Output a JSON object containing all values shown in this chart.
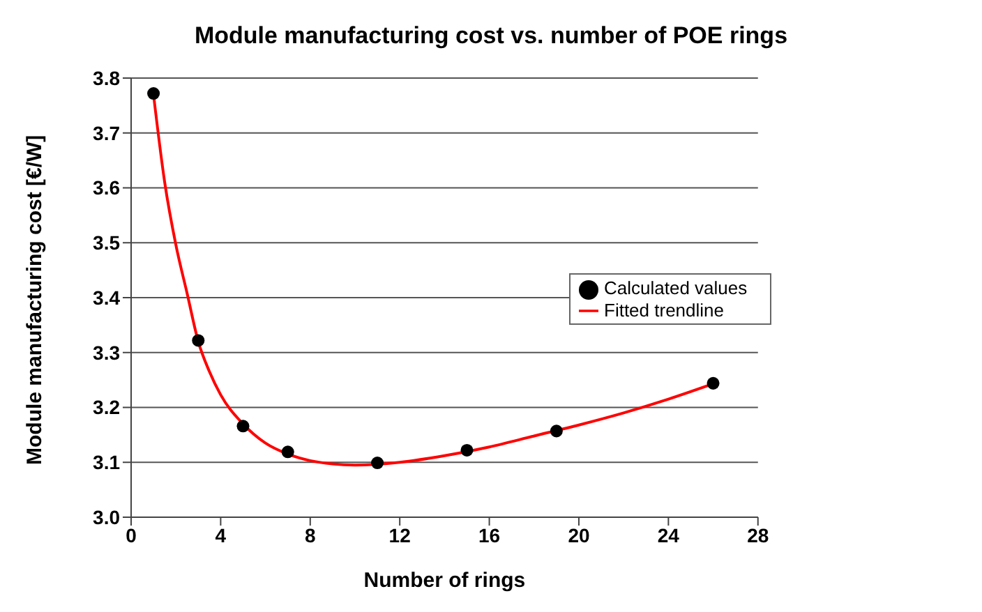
{
  "chart_data": {
    "type": "scatter",
    "title": "Module manufacturing cost vs. number of POE rings",
    "xlabel": "Number of rings",
    "ylabel": "Module manufacturing cost [€/W]",
    "xlim": [
      0,
      28
    ],
    "xticks": [
      0,
      4,
      8,
      12,
      16,
      20,
      24,
      28
    ],
    "ylim": [
      3.0,
      3.8
    ],
    "yticks": [
      {
        "value": 3.0,
        "label": "3.0"
      },
      3.1,
      3.2,
      3.3,
      3.4,
      3.5,
      3.6,
      3.7,
      3.8
    ],
    "grid": "y",
    "legend": "right",
    "series": [
      {
        "name": "Calculated values",
        "color": "#000000",
        "marker": "circle",
        "x": [
          1,
          3,
          5,
          7,
          11,
          15,
          19,
          26
        ],
        "values": [
          3.772,
          3.322,
          3.166,
          3.119,
          3.099,
          3.122,
          3.157,
          3.244
        ]
      },
      {
        "name": "Fitted trendline",
        "type": "line",
        "color": "#ff0000",
        "marker": "none",
        "line_style": "solid",
        "x": [
          1,
          1.5,
          2,
          2.5,
          3,
          3.5,
          4,
          5,
          6,
          7,
          8,
          9,
          10,
          12,
          14,
          16,
          18,
          20,
          22,
          24,
          26
        ],
        "values": [
          3.77,
          3.61,
          3.496,
          3.408,
          3.32,
          3.265,
          3.223,
          3.17,
          3.135,
          3.115,
          3.103,
          3.097,
          3.095,
          3.1,
          3.112,
          3.128,
          3.148,
          3.168,
          3.19,
          3.215,
          3.243
        ]
      }
    ]
  }
}
